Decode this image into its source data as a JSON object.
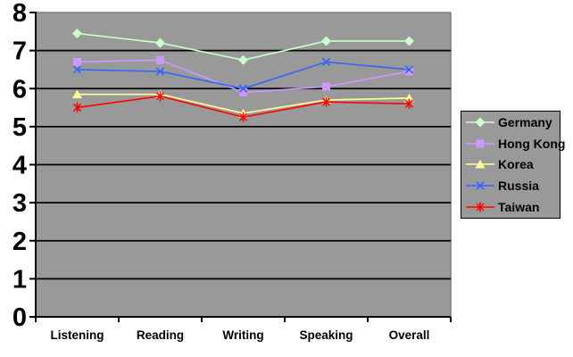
{
  "chart_data": {
    "type": "line",
    "title": "",
    "xlabel": "",
    "ylabel": "",
    "categories": [
      "Listening",
      "Reading",
      "Writing",
      "Speaking",
      "Overall"
    ],
    "series": [
      {
        "name": "Germany",
        "color": "#CCFFCC",
        "marker": "diamond",
        "values": [
          7.45,
          7.2,
          6.75,
          7.25,
          7.25
        ]
      },
      {
        "name": "Hong Kong",
        "color": "#CC99FF",
        "marker": "square",
        "values": [
          6.7,
          6.75,
          5.9,
          6.05,
          6.45
        ]
      },
      {
        "name": "Korea",
        "color": "#FFFF99",
        "marker": "triangle",
        "values": [
          5.85,
          5.85,
          5.35,
          5.7,
          5.75
        ]
      },
      {
        "name": "Russia",
        "color": "#3366FF",
        "marker": "x",
        "values": [
          6.5,
          6.45,
          6.0,
          6.7,
          6.5
        ]
      },
      {
        "name": "Taiwan",
        "color": "#FF0000",
        "marker": "star",
        "values": [
          5.5,
          5.8,
          5.25,
          5.65,
          5.6
        ]
      }
    ],
    "ylim": [
      0,
      8
    ],
    "yticks": [
      0,
      1,
      2,
      3,
      4,
      5,
      6,
      7,
      8
    ],
    "grid": true,
    "legend_position": "right",
    "plot_bg_color": "#999999",
    "gridline_color": "#000000",
    "axis_color": "#000000",
    "plot_border_color": "#808080",
    "label_color": "#000000"
  }
}
